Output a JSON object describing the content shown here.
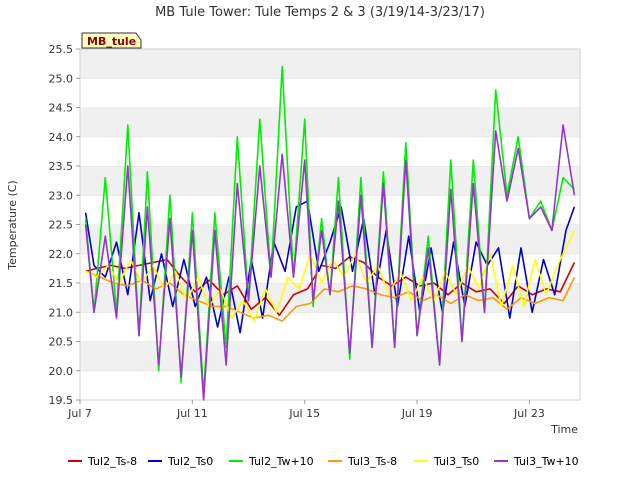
{
  "chart_data": {
    "type": "line",
    "title": "MB Tule Tower: Tule Temps 2 & 3 (3/19/14-3/23/17)",
    "xlabel": "Time",
    "ylabel": "Temperature (C)",
    "badge": "MB_tule",
    "ylim": [
      19.5,
      25.5
    ],
    "xlim": [
      "Jul 7",
      "Jul 24.8"
    ],
    "y_ticks": [
      "19.5",
      "20.0",
      "20.5",
      "21.0",
      "21.5",
      "22.0",
      "22.5",
      "23.0",
      "23.5",
      "24.0",
      "24.5",
      "25.0",
      "25.5"
    ],
    "x_ticks": [
      "Jul 7",
      "Jul 11",
      "Jul 15",
      "Jul 19",
      "Jul 23"
    ],
    "grid": "horizontal bands",
    "legend_position": "bottom",
    "series": [
      {
        "name": "Tul2_Ts-8",
        "color": "#cc0000",
        "x": [
          7.2,
          7.6,
          8.1,
          8.6,
          9.1,
          9.6,
          10.1,
          10.6,
          11.1,
          11.6,
          12.1,
          12.6,
          13.1,
          13.6,
          14.1,
          14.6,
          15.1,
          15.6,
          16.1,
          16.6,
          17.1,
          17.6,
          18.1,
          18.6,
          19.1,
          19.6,
          20.1,
          20.6,
          21.1,
          21.6,
          22.1,
          22.6,
          23.1,
          23.6,
          24.1,
          24.6
        ],
        "y": [
          21.7,
          21.75,
          21.8,
          21.75,
          21.8,
          21.85,
          21.9,
          21.6,
          21.35,
          21.55,
          21.3,
          21.45,
          21.05,
          21.25,
          20.95,
          21.3,
          21.4,
          21.8,
          21.75,
          21.95,
          21.85,
          21.6,
          21.45,
          21.6,
          21.45,
          21.5,
          21.3,
          21.5,
          21.35,
          21.4,
          21.15,
          21.45,
          21.3,
          21.4,
          21.35,
          21.85
        ]
      },
      {
        "name": "Tul2_Ts0",
        "color": "#0000cc",
        "x": [
          7.2,
          7.5,
          7.9,
          8.3,
          8.7,
          9.1,
          9.5,
          9.9,
          10.3,
          10.7,
          11.1,
          11.5,
          11.9,
          12.3,
          12.7,
          13.1,
          13.5,
          13.9,
          14.3,
          14.7,
          15.1,
          15.5,
          15.9,
          16.3,
          16.7,
          17.1,
          17.5,
          17.9,
          18.3,
          18.7,
          19.1,
          19.5,
          19.9,
          20.3,
          20.7,
          21.1,
          21.5,
          21.9,
          22.3,
          22.7,
          23.1,
          23.5,
          23.9,
          24.3,
          24.6
        ],
        "y": [
          22.7,
          21.8,
          21.6,
          22.2,
          21.3,
          22.7,
          21.2,
          22.0,
          21.1,
          21.9,
          21.1,
          21.6,
          20.75,
          21.6,
          20.65,
          21.9,
          20.9,
          22.2,
          21.7,
          22.8,
          22.9,
          21.7,
          22.2,
          22.8,
          21.7,
          22.6,
          21.3,
          22.4,
          21.1,
          22.3,
          21.0,
          22.1,
          21.0,
          22.2,
          21.1,
          22.2,
          21.8,
          22.1,
          20.9,
          22.1,
          21.0,
          21.9,
          21.3,
          22.4,
          22.8
        ]
      },
      {
        "name": "Tul2_Tw+10",
        "color": "#00ee00",
        "x": [
          7.2,
          7.5,
          7.9,
          8.3,
          8.7,
          9.1,
          9.4,
          9.8,
          10.2,
          10.6,
          11.0,
          11.4,
          11.8,
          12.2,
          12.6,
          13.0,
          13.4,
          13.8,
          14.2,
          14.6,
          15.0,
          15.3,
          15.6,
          15.9,
          16.2,
          16.6,
          17.0,
          17.4,
          17.8,
          18.2,
          18.6,
          19.0,
          19.4,
          19.8,
          20.2,
          20.6,
          21.0,
          21.4,
          21.8,
          22.2,
          22.6,
          23.0,
          23.4,
          23.8,
          24.2,
          24.6
        ],
        "y": [
          22.6,
          21.0,
          23.3,
          21.0,
          24.2,
          20.6,
          23.4,
          20.0,
          23.0,
          19.8,
          22.7,
          19.6,
          22.7,
          20.4,
          24.0,
          21.2,
          24.3,
          21.6,
          25.2,
          21.6,
          24.3,
          21.1,
          22.6,
          21.3,
          23.3,
          20.2,
          23.3,
          20.4,
          23.4,
          20.4,
          23.9,
          20.6,
          22.3,
          20.1,
          23.6,
          20.5,
          23.6,
          21.0,
          24.8,
          23.0,
          24.0,
          22.6,
          22.9,
          22.4,
          23.3,
          23.1
        ]
      },
      {
        "name": "Tul3_Ts-8",
        "color": "#ff9900",
        "x": [
          7.2,
          7.7,
          8.2,
          8.7,
          9.2,
          9.7,
          10.2,
          10.7,
          11.2,
          11.7,
          12.2,
          12.7,
          13.2,
          13.7,
          14.2,
          14.7,
          15.2,
          15.7,
          16.2,
          16.7,
          17.2,
          17.7,
          18.2,
          18.7,
          19.2,
          19.7,
          20.2,
          20.7,
          21.2,
          21.7,
          22.2,
          22.7,
          23.2,
          23.7,
          24.2,
          24.6
        ],
        "y": [
          21.7,
          21.6,
          21.5,
          21.45,
          21.55,
          21.4,
          21.5,
          21.3,
          21.2,
          21.1,
          21.1,
          21.0,
          20.9,
          20.95,
          20.85,
          21.1,
          21.15,
          21.4,
          21.35,
          21.45,
          21.4,
          21.3,
          21.25,
          21.35,
          21.2,
          21.3,
          21.15,
          21.3,
          21.2,
          21.25,
          21.05,
          21.25,
          21.15,
          21.25,
          21.2,
          21.6
        ]
      },
      {
        "name": "Tul3_Ts0",
        "color": "#ffff00",
        "x": [
          7.2,
          7.6,
          8.0,
          8.4,
          8.8,
          9.2,
          9.6,
          10.0,
          10.4,
          10.8,
          11.2,
          11.6,
          12.0,
          12.4,
          12.8,
          13.2,
          13.6,
          14.0,
          14.4,
          14.8,
          15.2,
          15.6,
          16.0,
          16.4,
          16.8,
          17.2,
          17.6,
          18.0,
          18.4,
          18.8,
          19.2,
          19.6,
          20.0,
          20.4,
          20.8,
          21.2,
          21.6,
          22.0,
          22.4,
          22.8,
          23.2,
          23.6,
          24.0,
          24.4,
          24.6
        ],
        "y": [
          21.7,
          21.6,
          21.8,
          21.5,
          21.9,
          21.5,
          21.8,
          21.4,
          21.7,
          21.2,
          21.6,
          21.1,
          21.4,
          20.9,
          21.2,
          20.85,
          21.4,
          21.0,
          21.6,
          21.4,
          22.0,
          21.5,
          21.9,
          21.6,
          22.0,
          21.5,
          21.8,
          21.3,
          21.7,
          21.2,
          21.6,
          21.2,
          21.7,
          21.3,
          21.8,
          21.4,
          22.0,
          21.1,
          21.8,
          21.1,
          21.9,
          21.3,
          21.8,
          22.2,
          22.4
        ]
      },
      {
        "name": "Tul3_Tw+10",
        "color": "#9933cc",
        "x": [
          7.2,
          7.5,
          7.9,
          8.3,
          8.7,
          9.1,
          9.4,
          9.8,
          10.2,
          10.6,
          11.0,
          11.4,
          11.8,
          12.2,
          12.6,
          13.0,
          13.4,
          13.8,
          14.2,
          14.6,
          15.0,
          15.3,
          15.6,
          15.9,
          16.2,
          16.6,
          17.0,
          17.4,
          17.8,
          18.2,
          18.6,
          19.0,
          19.4,
          19.8,
          20.2,
          20.6,
          21.0,
          21.4,
          21.8,
          22.2,
          22.6,
          23.0,
          23.4,
          23.8,
          24.2,
          24.6
        ],
        "y": [
          22.5,
          21.0,
          22.3,
          20.9,
          23.5,
          20.6,
          22.8,
          20.1,
          22.6,
          19.9,
          22.4,
          19.5,
          22.4,
          20.1,
          23.2,
          21.2,
          23.5,
          21.6,
          23.7,
          21.6,
          23.6,
          21.2,
          22.4,
          21.3,
          22.9,
          20.3,
          23.0,
          20.4,
          23.2,
          20.4,
          23.6,
          20.6,
          22.1,
          20.1,
          23.1,
          20.5,
          23.2,
          21.0,
          24.1,
          22.9,
          23.8,
          22.6,
          22.8,
          22.4,
          24.2,
          23.0
        ]
      }
    ]
  }
}
